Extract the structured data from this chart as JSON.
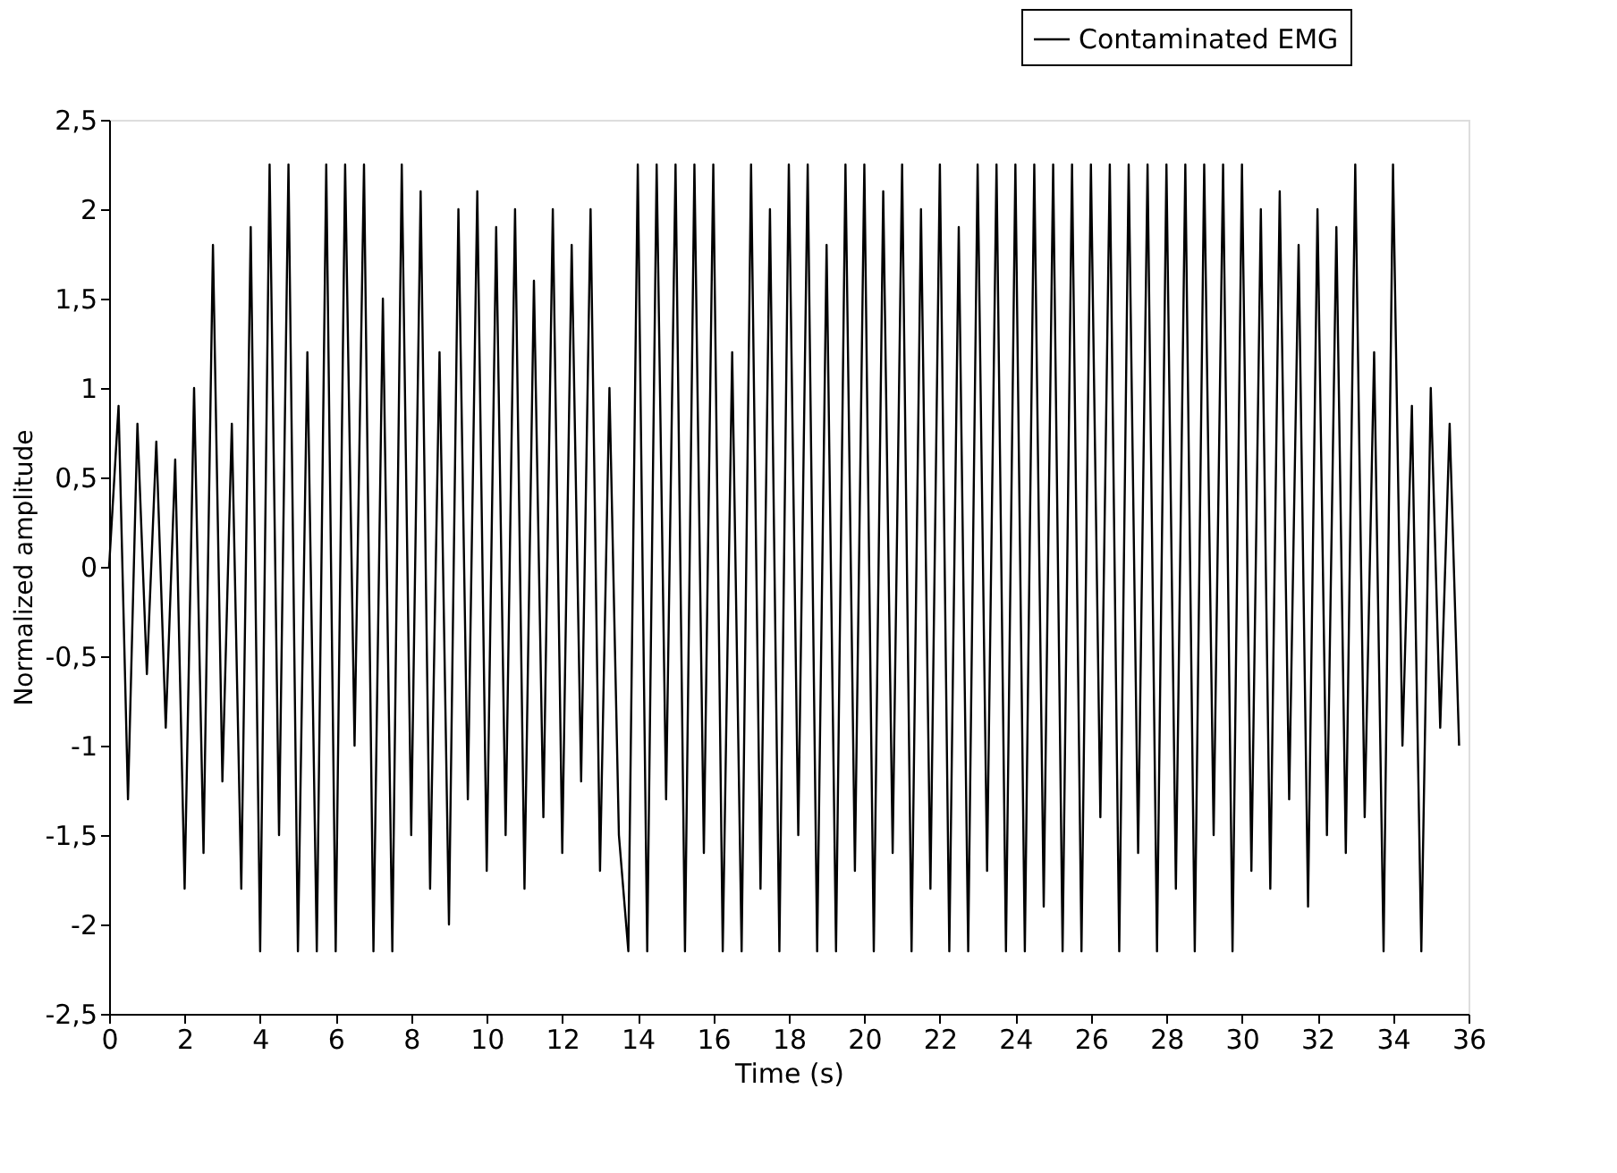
{
  "chart_data": {
    "type": "line",
    "xlabel": "Time (s)",
    "ylabel": "Normalized amplitude",
    "x": [
      0,
      0.25,
      0.5,
      0.75,
      1,
      1.25,
      1.5,
      1.75,
      2,
      2.25,
      2.5,
      2.75,
      3,
      3.25,
      3.5,
      3.75,
      4,
      4.25,
      4.5,
      4.75,
      5,
      5.25,
      5.5,
      5.75,
      6,
      6.25,
      6.5,
      6.75,
      7,
      7.25,
      7.5,
      7.75,
      8,
      8.25,
      8.5,
      8.75,
      9,
      9.25,
      9.5,
      9.75,
      10,
      10.25,
      10.5,
      10.75,
      11,
      11.25,
      11.5,
      11.75,
      12,
      12.25,
      12.5,
      12.75,
      13,
      13.25,
      13.5,
      13.75,
      14,
      14.25,
      14.5,
      14.75,
      15,
      15.25,
      15.5,
      15.75,
      16,
      16.25,
      16.5,
      16.75,
      17,
      17.25,
      17.5,
      17.75,
      18,
      18.25,
      18.5,
      18.75,
      19,
      19.25,
      19.5,
      19.75,
      20,
      20.25,
      20.5,
      20.75,
      21,
      21.25,
      21.5,
      21.75,
      22,
      22.25,
      22.5,
      22.75,
      23,
      23.25,
      23.5,
      23.75,
      24,
      24.25,
      24.5,
      24.75,
      25,
      25.25,
      25.5,
      25.75,
      26,
      26.25,
      26.5,
      26.75,
      27,
      27.25,
      27.5,
      27.75,
      28,
      28.25,
      28.5,
      28.75,
      29,
      29.25,
      29.5,
      29.75,
      30,
      30.25,
      30.5,
      30.75,
      31,
      31.25,
      31.5,
      31.75,
      32,
      32.25,
      32.5,
      32.75,
      33,
      33.25,
      33.5,
      33.75,
      34,
      34.25,
      34.5,
      34.75,
      35,
      35.25,
      35.5,
      35.75
    ],
    "series": [
      {
        "name": "Contaminated EMG",
        "color": "#000000",
        "values": [
          0,
          0.9,
          -1.3,
          0.8,
          -0.6,
          0.7,
          -0.9,
          0.6,
          -1.8,
          1.0,
          -1.6,
          1.8,
          -1.2,
          0.8,
          -1.8,
          1.9,
          -2.15,
          2.25,
          -1.5,
          2.25,
          -2.15,
          1.2,
          -2.15,
          2.25,
          -2.15,
          2.25,
          -1.0,
          2.25,
          -2.15,
          1.5,
          -2.15,
          2.25,
          -1.5,
          2.1,
          -1.8,
          1.2,
          -2.0,
          2.0,
          -1.3,
          2.1,
          -1.7,
          1.9,
          -1.5,
          2.0,
          -1.8,
          1.6,
          -1.4,
          2.0,
          -1.6,
          1.8,
          -1.2,
          2.0,
          -1.7,
          1.0,
          -1.5,
          -2.15,
          2.25,
          -2.15,
          2.25,
          -1.3,
          2.25,
          -2.15,
          2.25,
          -1.6,
          2.25,
          -2.15,
          1.2,
          -2.15,
          2.25,
          -1.8,
          2.0,
          -2.15,
          2.25,
          -1.5,
          2.25,
          -2.15,
          1.8,
          -2.15,
          2.25,
          -1.7,
          2.25,
          -2.15,
          2.1,
          -1.6,
          2.25,
          -2.15,
          2.0,
          -1.8,
          2.25,
          -2.15,
          1.9,
          -2.15,
          2.25,
          -1.7,
          2.25,
          -2.15,
          2.25,
          -2.15,
          2.25,
          -1.9,
          2.25,
          -2.15,
          2.25,
          -2.15,
          2.25,
          -1.4,
          2.25,
          -2.15,
          2.25,
          -1.6,
          2.25,
          -2.15,
          2.25,
          -1.8,
          2.25,
          -2.15,
          2.25,
          -1.5,
          2.25,
          -2.15,
          2.25,
          -1.7,
          2.0,
          -1.8,
          2.1,
          -1.3,
          1.8,
          -1.9,
          2.0,
          -1.5,
          1.9,
          -1.6,
          2.25,
          -1.4,
          1.2,
          -2.15,
          2.25,
          -1.0,
          0.9,
          -2.15,
          1.0,
          -0.9,
          0.8,
          -1.0
        ]
      }
    ],
    "xlim": [
      0,
      36
    ],
    "xticks": [
      0,
      2,
      4,
      6,
      8,
      10,
      12,
      14,
      16,
      18,
      20,
      22,
      24,
      26,
      28,
      30,
      32,
      34,
      36
    ],
    "ylim": [
      -2.5,
      2.5
    ],
    "yticks": [
      {
        "value": -2.5,
        "label": "-2,5"
      },
      -2,
      {
        "value": -1.5,
        "label": "-1,5"
      },
      -1,
      {
        "value": -0.5,
        "label": "-0,5"
      },
      0,
      {
        "value": 0.5,
        "label": "0,5"
      },
      1,
      {
        "value": 1.5,
        "label": "1,5"
      },
      2,
      {
        "value": 2.5,
        "label": "2,5"
      }
    ],
    "grid": false,
    "legend": "top right",
    "line_style": "solid",
    "marker": "none"
  }
}
